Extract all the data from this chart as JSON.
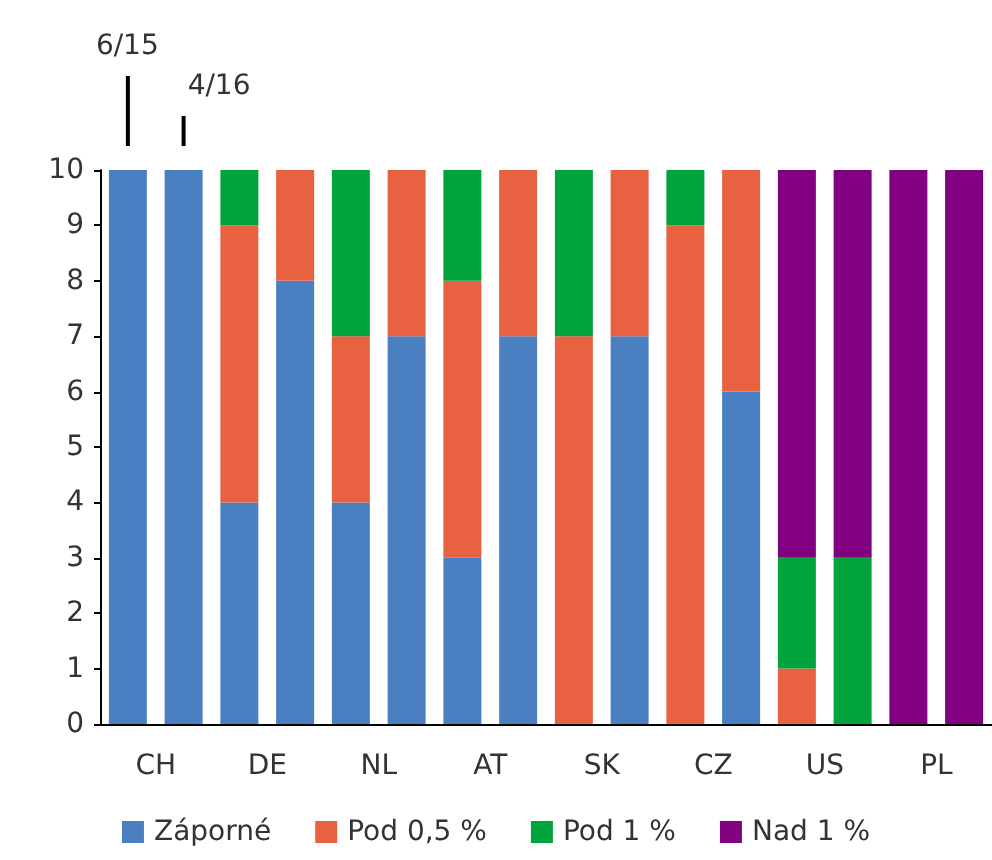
{
  "chart_data": {
    "type": "bar",
    "stacked": true,
    "categories": [
      "CH",
      null,
      "DE",
      null,
      "NL",
      null,
      "AT",
      null,
      "SK",
      null,
      "CZ",
      null,
      "US",
      null,
      "PL",
      null
    ],
    "series": [
      {
        "name": "Záporné",
        "color": "#4a7fc1",
        "values": [
          10,
          10,
          4,
          8,
          4,
          7,
          3,
          7,
          0,
          7,
          0,
          6,
          0,
          0,
          0,
          0
        ]
      },
      {
        "name": "Pod 0,5 %",
        "color": "#e86242",
        "values": [
          0,
          0,
          5,
          2,
          3,
          3,
          5,
          3,
          7,
          3,
          9,
          4,
          1,
          0,
          0,
          0
        ]
      },
      {
        "name": "Pod 1 %",
        "color": "#00a33c",
        "values": [
          0,
          0,
          1,
          0,
          3,
          0,
          2,
          0,
          3,
          0,
          1,
          0,
          2,
          3,
          0,
          0
        ]
      },
      {
        "name": "Nad 1 %",
        "color": "#800080",
        "values": [
          0,
          0,
          0,
          0,
          0,
          0,
          0,
          0,
          0,
          0,
          0,
          0,
          7,
          7,
          10,
          10
        ]
      }
    ],
    "ylim": [
      0,
      10
    ],
    "yticks": [
      0,
      1,
      2,
      3,
      4,
      5,
      6,
      7,
      8,
      9,
      10
    ],
    "grid": false,
    "legend": "bottom",
    "annotations": [
      "6/15",
      "4/16"
    ]
  }
}
